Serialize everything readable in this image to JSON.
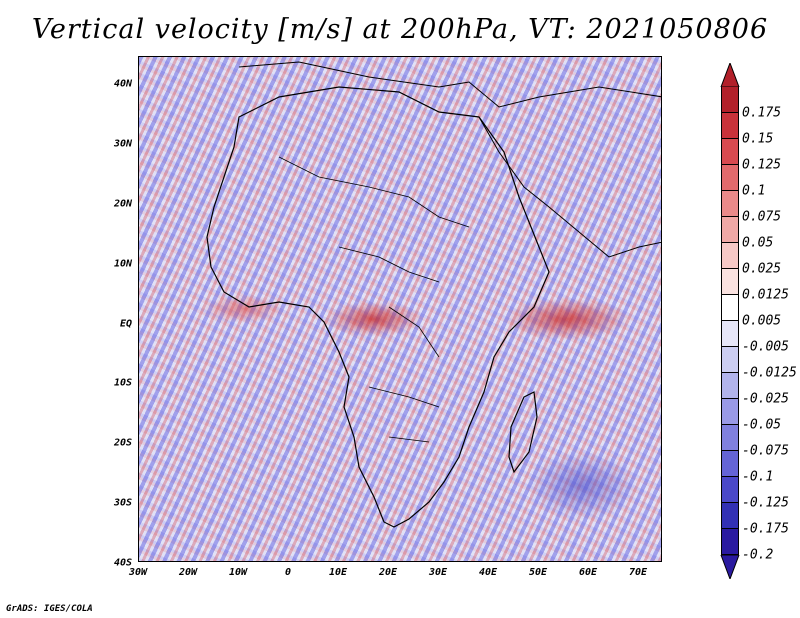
{
  "title": "Vertical velocity [m/s] at 200hPa, VT: 2021050806",
  "credit": "GrADS: IGES/COLA",
  "lat_labels": [
    "40N",
    "30N",
    "20N",
    "10N",
    "EQ",
    "10S",
    "20S",
    "30S",
    "40S"
  ],
  "lon_labels": [
    "30W",
    "20W",
    "10W",
    "0",
    "10E",
    "20E",
    "30E",
    "40E",
    "50E",
    "60E",
    "70E"
  ],
  "colorbar": {
    "labels": [
      "0.175",
      "0.15",
      "0.125",
      "0.1",
      "0.075",
      "0.05",
      "0.025",
      "0.0125",
      "0.005",
      "-0.005",
      "-0.0125",
      "-0.025",
      "-0.05",
      "-0.075",
      "-0.1",
      "-0.125",
      "-0.175",
      "-0.2"
    ],
    "colors": [
      "#b2202a",
      "#c8323a",
      "#d84a50",
      "#e26a6c",
      "#ea8a8a",
      "#f0a8a6",
      "#f6c8c6",
      "#fae2e0",
      "#ffffff",
      "#e6e6f8",
      "#cccef2",
      "#b2b4ec",
      "#9a9ae6",
      "#8080de",
      "#6464d6",
      "#4a48c8",
      "#3230b4",
      "#2a1aa0"
    ]
  }
}
